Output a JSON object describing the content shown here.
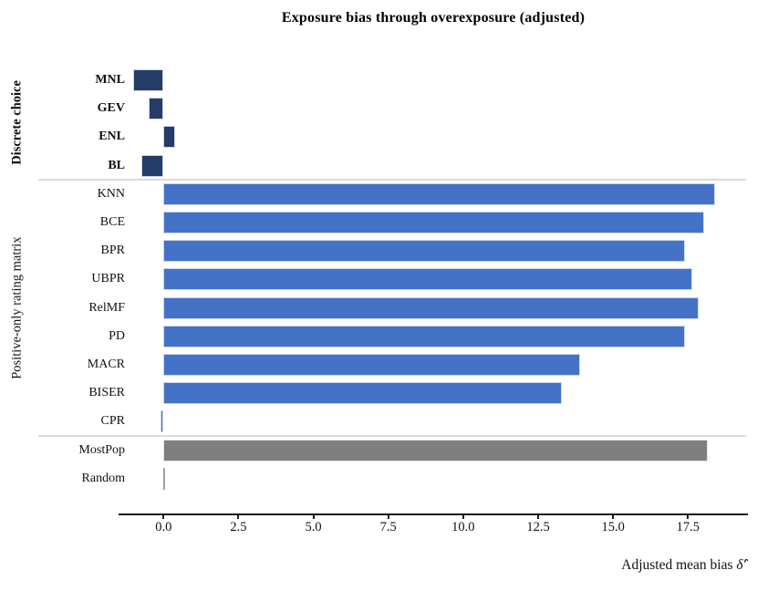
{
  "chart_data": {
    "type": "bar",
    "orientation": "horizontal",
    "title": "Exposure bias through overexposure (adjusted)",
    "xlabel_text": "Adjusted mean bias",
    "xlabel_symbol": "δ̂′",
    "xlim": [
      -1.5,
      19.5
    ],
    "grid": false,
    "legend": "none",
    "xticks": [
      {
        "value": 0.0,
        "label": "0.0"
      },
      {
        "value": 2.5,
        "label": "2.5"
      },
      {
        "value": 5.0,
        "label": "5.0"
      },
      {
        "value": 7.5,
        "label": "7.5"
      },
      {
        "value": 10.0,
        "label": "10.0"
      },
      {
        "value": 12.5,
        "label": "12.5"
      },
      {
        "value": 15.0,
        "label": "15.0"
      },
      {
        "value": 17.5,
        "label": "17.5"
      }
    ],
    "palette": {
      "discrete": {
        "fill": "#253c66",
        "edge": "#ccd6ea",
        "edge_width": 1.5
      },
      "positive": {
        "fill": "#4472c7",
        "edge": "#ccd6ea",
        "edge_width": 1.5
      },
      "mostpop": {
        "fill": "#7f7f7f",
        "edge": "#e6e6e6",
        "edge_width": 1.5
      },
      "random": {
        "fill": "#a0a0a0",
        "edge": "#e6e6e6",
        "edge_width": 0
      }
    },
    "groups": [
      {
        "label": "Discrete choice",
        "bold_label": true,
        "bold_rows": true,
        "rows": [
          {
            "label": "MNL",
            "value": -1.0,
            "color": "discrete"
          },
          {
            "label": "GEV",
            "value": -0.5,
            "color": "discrete"
          },
          {
            "label": "ENL",
            "value": 0.4,
            "color": "discrete"
          },
          {
            "label": "BL",
            "value": -0.75,
            "color": "discrete"
          }
        ]
      },
      {
        "label": "Positive-only rating matrix",
        "bold_label": false,
        "bold_rows": false,
        "rows": [
          {
            "label": "KNN",
            "value": 18.4,
            "color": "positive"
          },
          {
            "label": "BCE",
            "value": 18.05,
            "color": "positive"
          },
          {
            "label": "BPR",
            "value": 17.4,
            "color": "positive"
          },
          {
            "label": "UBPR",
            "value": 17.65,
            "color": "positive"
          },
          {
            "label": "RelMF",
            "value": 17.85,
            "color": "positive"
          },
          {
            "label": "PD",
            "value": 17.4,
            "color": "positive"
          },
          {
            "label": "MACR",
            "value": 13.9,
            "color": "positive"
          },
          {
            "label": "BISER",
            "value": 13.3,
            "color": "positive"
          },
          {
            "label": "CPR",
            "value": -0.1,
            "color": "positive"
          }
        ]
      },
      {
        "label": "",
        "bold_label": false,
        "bold_rows": false,
        "rows": [
          {
            "label": "MostPop",
            "value": 18.15,
            "color": "mostpop"
          },
          {
            "label": "Random",
            "value": 0.05,
            "color": "random"
          }
        ]
      }
    ]
  }
}
